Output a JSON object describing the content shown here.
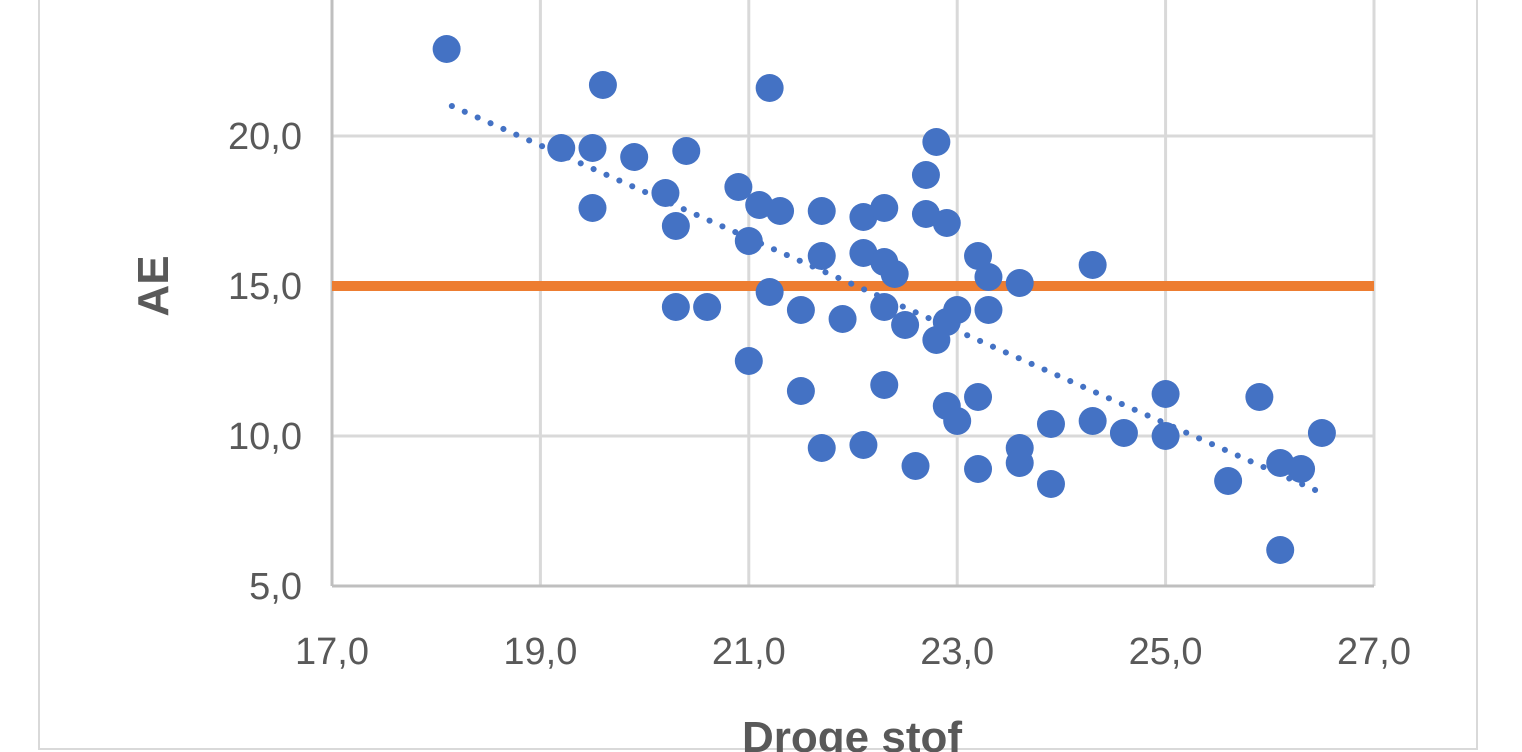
{
  "chart_data": {
    "type": "scatter",
    "xlabel": "Droge stof",
    "ylabel": "AE",
    "xlim": [
      17,
      27
    ],
    "ylim": [
      5,
      25
    ],
    "x_ticks": [
      "17,0",
      "19,0",
      "21,0",
      "23,0",
      "25,0",
      "27,0"
    ],
    "y_ticks": [
      "5,0",
      "10,0",
      "15,0",
      "20,0"
    ],
    "grid": true,
    "legend": "none",
    "colors": {
      "points": "#4472C4",
      "reference_line": "#ED7D31",
      "trendline": "#4472C4",
      "grid": "#d9d9d9",
      "axis": "#bfbfbf"
    },
    "reference_line": {
      "y": 15.0
    },
    "trendline": {
      "style": "dotted",
      "x_start": 18.15,
      "y_start": 21.0,
      "x_end": 26.5,
      "y_end": 8.1
    },
    "series": [
      {
        "points": [
          [
            18.1,
            22.9
          ],
          [
            19.2,
            19.6
          ],
          [
            19.5,
            19.6
          ],
          [
            19.6,
            21.7
          ],
          [
            19.5,
            17.6
          ],
          [
            19.9,
            19.3
          ],
          [
            20.2,
            18.1
          ],
          [
            20.4,
            19.5
          ],
          [
            20.3,
            17.0
          ],
          [
            20.3,
            14.3
          ],
          [
            20.6,
            14.3
          ],
          [
            20.9,
            18.3
          ],
          [
            21.0,
            16.5
          ],
          [
            21.2,
            21.6
          ],
          [
            21.1,
            17.7
          ],
          [
            21.3,
            17.5
          ],
          [
            21.2,
            14.8
          ],
          [
            21.5,
            14.2
          ],
          [
            21.7,
            17.5
          ],
          [
            21.7,
            16.0
          ],
          [
            21.0,
            12.5
          ],
          [
            21.5,
            11.5
          ],
          [
            21.7,
            9.6
          ],
          [
            22.1,
            16.1
          ],
          [
            22.1,
            17.3
          ],
          [
            22.3,
            17.6
          ],
          [
            22.3,
            15.8
          ],
          [
            22.4,
            15.4
          ],
          [
            22.3,
            14.3
          ],
          [
            21.9,
            13.9
          ],
          [
            22.5,
            13.7
          ],
          [
            22.3,
            11.7
          ],
          [
            22.1,
            9.7
          ],
          [
            22.7,
            17.4
          ],
          [
            22.7,
            18.7
          ],
          [
            22.8,
            19.8
          ],
          [
            22.9,
            17.1
          ],
          [
            22.9,
            13.8
          ],
          [
            22.8,
            13.2
          ],
          [
            23.0,
            14.2
          ],
          [
            22.9,
            11.0
          ],
          [
            23.0,
            10.5
          ],
          [
            22.6,
            9.0
          ],
          [
            23.2,
            16.0
          ],
          [
            23.3,
            15.3
          ],
          [
            23.3,
            14.2
          ],
          [
            23.2,
            11.3
          ],
          [
            23.2,
            8.9
          ],
          [
            23.6,
            15.1
          ],
          [
            23.6,
            9.6
          ],
          [
            23.6,
            9.1
          ],
          [
            23.9,
            10.4
          ],
          [
            23.9,
            8.4
          ],
          [
            24.3,
            15.7
          ],
          [
            24.3,
            10.5
          ],
          [
            24.6,
            10.1
          ],
          [
            25.0,
            11.4
          ],
          [
            25.0,
            10.0
          ],
          [
            25.6,
            8.5
          ],
          [
            25.9,
            11.3
          ],
          [
            26.1,
            9.1
          ],
          [
            26.1,
            6.2
          ],
          [
            26.3,
            8.9
          ],
          [
            26.5,
            10.1
          ]
        ]
      }
    ]
  }
}
